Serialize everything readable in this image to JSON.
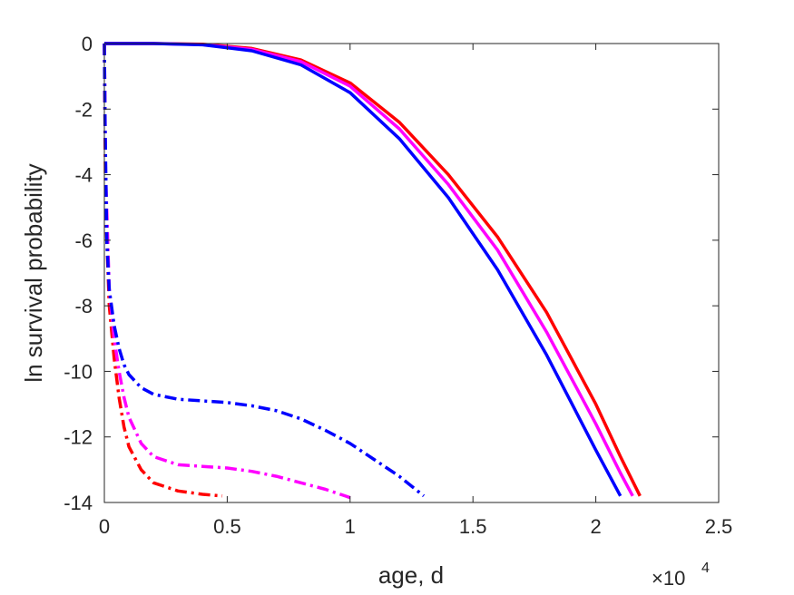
{
  "chart_data": {
    "type": "line",
    "title": "",
    "xlabel": "age, d",
    "ylabel": "ln survival probability",
    "x_exponent": {
      "base": "×10",
      "power": "4"
    },
    "xlim": [
      0,
      2.5
    ],
    "ylim": [
      -14,
      0
    ],
    "xticks": [
      0,
      0.5,
      1,
      1.5,
      2,
      2.5
    ],
    "xtick_labels": [
      "0",
      "0.5",
      "1",
      "1.5",
      "2",
      "2.5"
    ],
    "yticks": [
      0,
      -2,
      -4,
      -6,
      -8,
      -10,
      -12,
      -14
    ],
    "ytick_labels": [
      "0",
      "-2",
      "-4",
      "-6",
      "-8",
      "-10",
      "-12",
      "-14"
    ],
    "grid": false,
    "series": [
      {
        "color": "#ff0000",
        "style": "solid",
        "x": [
          0,
          0.2,
          0.4,
          0.6,
          0.8,
          1.0,
          1.2,
          1.4,
          1.6,
          1.8,
          2.0,
          2.1,
          2.18
        ],
        "y": [
          0,
          0,
          -0.02,
          -0.15,
          -0.5,
          -1.2,
          -2.4,
          -4.0,
          -5.9,
          -8.2,
          -11.0,
          -12.6,
          -13.8
        ]
      },
      {
        "color": "#ff00ff",
        "style": "solid",
        "x": [
          0,
          0.2,
          0.4,
          0.6,
          0.8,
          1.0,
          1.2,
          1.4,
          1.6,
          1.8,
          2.0,
          2.1,
          2.15
        ],
        "y": [
          0,
          0,
          -0.03,
          -0.18,
          -0.55,
          -1.3,
          -2.6,
          -4.3,
          -6.3,
          -8.8,
          -11.6,
          -13.1,
          -13.8
        ]
      },
      {
        "color": "#0000ff",
        "style": "solid",
        "x": [
          0,
          0.2,
          0.4,
          0.6,
          0.8,
          1.0,
          1.2,
          1.4,
          1.6,
          1.8,
          2.0,
          2.1
        ],
        "y": [
          0,
          0,
          -0.04,
          -0.22,
          -0.65,
          -1.5,
          -2.9,
          -4.7,
          -6.9,
          -9.5,
          -12.4,
          -13.8
        ]
      },
      {
        "color": "#ff0000",
        "style": "dashdot",
        "x": [
          0,
          0.005,
          0.02,
          0.04,
          0.06,
          0.08,
          0.1,
          0.15,
          0.2,
          0.3,
          0.4,
          0.48
        ],
        "y": [
          0,
          -5.0,
          -8.0,
          -9.6,
          -10.8,
          -11.7,
          -12.3,
          -13.0,
          -13.4,
          -13.65,
          -13.75,
          -13.8
        ]
      },
      {
        "color": "#ff00ff",
        "style": "dashdot",
        "x": [
          0,
          0.005,
          0.02,
          0.04,
          0.06,
          0.08,
          0.1,
          0.15,
          0.2,
          0.3,
          0.4,
          0.5,
          0.6,
          0.7,
          0.8,
          0.9,
          1.0
        ],
        "y": [
          0,
          -4.0,
          -7.5,
          -9.0,
          -10.0,
          -10.8,
          -11.4,
          -12.2,
          -12.6,
          -12.85,
          -12.9,
          -12.95,
          -13.05,
          -13.2,
          -13.4,
          -13.6,
          -13.85
        ]
      },
      {
        "color": "#0000ff",
        "style": "dashdot",
        "x": [
          0,
          0.003,
          0.01,
          0.02,
          0.04,
          0.06,
          0.08,
          0.1,
          0.15,
          0.2,
          0.3,
          0.4,
          0.5,
          0.6,
          0.7,
          0.8,
          0.9,
          1.0,
          1.1,
          1.2,
          1.3
        ],
        "y": [
          0,
          -2.5,
          -6.0,
          -7.5,
          -8.6,
          -9.3,
          -9.8,
          -10.1,
          -10.5,
          -10.7,
          -10.85,
          -10.9,
          -10.95,
          -11.05,
          -11.2,
          -11.45,
          -11.8,
          -12.2,
          -12.7,
          -13.2,
          -13.8
        ]
      }
    ]
  }
}
